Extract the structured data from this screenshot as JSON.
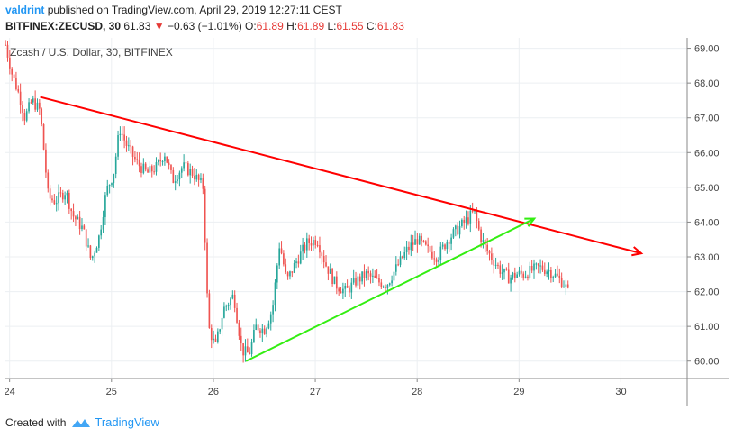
{
  "header": {
    "user": "valdrint",
    "published_text": "published on TradingView.com, April 29, 2019 12:27:11 CEST",
    "symbol": "BITFINEX:ZECUSD, 30",
    "last": "61.83",
    "change_arrow": "▼",
    "change": "−0.63 (−1.01%)",
    "o_label": "O:",
    "o": "61.89",
    "h_label": "H:",
    "h": "61.89",
    "l_label": "L:",
    "l": "61.55",
    "c_label": "C:",
    "c": "61.83"
  },
  "footer": {
    "created_with": "Created with",
    "brand": "TradingView"
  },
  "colors": {
    "up": "#26a69a",
    "down": "#ef5350",
    "resistance": "#ff0000",
    "support": "#33ee11",
    "grid": "#eceff2",
    "axis_text": "#444444"
  },
  "chart_data": {
    "type": "candlestick",
    "title": "Zcash / U.S. Dollar, 30, BITFINEX",
    "x_ticks": [
      "24",
      "25",
      "26",
      "27",
      "28",
      "29",
      "30"
    ],
    "x_range": [
      23.95,
      30.65
    ],
    "y_ticks": [
      "69.00",
      "68.00",
      "67.00",
      "66.00",
      "65.00",
      "64.00",
      "63.00",
      "62.00",
      "61.00",
      "60.00"
    ],
    "y_range": [
      59.5,
      69.3
    ],
    "close_path": [
      [
        23.96,
        69.1
      ],
      [
        24.02,
        68.3
      ],
      [
        24.1,
        67.6
      ],
      [
        24.15,
        67.0
      ],
      [
        24.22,
        67.5
      ],
      [
        24.3,
        67.2
      ],
      [
        24.38,
        64.7
      ],
      [
        24.45,
        64.6
      ],
      [
        24.55,
        64.9
      ],
      [
        24.62,
        64.2
      ],
      [
        24.72,
        63.8
      ],
      [
        24.8,
        62.9
      ],
      [
        24.88,
        63.6
      ],
      [
        24.95,
        64.9
      ],
      [
        25.02,
        65.4
      ],
      [
        25.08,
        66.7
      ],
      [
        25.15,
        66.2
      ],
      [
        25.25,
        65.7
      ],
      [
        25.35,
        65.4
      ],
      [
        25.45,
        65.6
      ],
      [
        25.52,
        66.0
      ],
      [
        25.6,
        65.2
      ],
      [
        25.7,
        65.6
      ],
      [
        25.8,
        65.4
      ],
      [
        25.9,
        65.0
      ],
      [
        25.95,
        61.0
      ],
      [
        26.02,
        60.4
      ],
      [
        26.1,
        61.5
      ],
      [
        26.2,
        61.9
      ],
      [
        26.28,
        60.3
      ],
      [
        26.35,
        60.2
      ],
      [
        26.42,
        61.0
      ],
      [
        26.5,
        60.9
      ],
      [
        26.58,
        61.5
      ],
      [
        26.65,
        63.4
      ],
      [
        26.72,
        62.3
      ],
      [
        26.82,
        62.9
      ],
      [
        26.92,
        63.4
      ],
      [
        27.02,
        63.5
      ],
      [
        27.1,
        62.8
      ],
      [
        27.2,
        62.2
      ],
      [
        27.3,
        62.0
      ],
      [
        27.4,
        62.3
      ],
      [
        27.5,
        62.5
      ],
      [
        27.6,
        62.3
      ],
      [
        27.7,
        62.2
      ],
      [
        27.8,
        62.7
      ],
      [
        27.9,
        63.2
      ],
      [
        28.0,
        63.5
      ],
      [
        28.1,
        63.2
      ],
      [
        28.2,
        63.0
      ],
      [
        28.3,
        63.5
      ],
      [
        28.4,
        63.8
      ],
      [
        28.5,
        64.1
      ],
      [
        28.56,
        64.3
      ],
      [
        28.62,
        63.6
      ],
      [
        28.68,
        63.2
      ],
      [
        28.75,
        62.9
      ],
      [
        28.82,
        62.6
      ],
      [
        28.9,
        62.4
      ],
      [
        28.98,
        62.5
      ],
      [
        29.05,
        62.5
      ],
      [
        29.12,
        62.6
      ],
      [
        29.2,
        62.7
      ],
      [
        29.3,
        62.6
      ],
      [
        29.38,
        62.4
      ],
      [
        29.45,
        62.2
      ],
      [
        29.5,
        61.83
      ]
    ],
    "lines": [
      {
        "name": "resistance",
        "from": [
          24.3,
          67.6
        ],
        "to": [
          30.2,
          63.1
        ],
        "arrow": true
      },
      {
        "name": "support",
        "from": [
          26.32,
          60.0
        ],
        "to": [
          29.15,
          64.1
        ],
        "arrow": true
      }
    ]
  }
}
